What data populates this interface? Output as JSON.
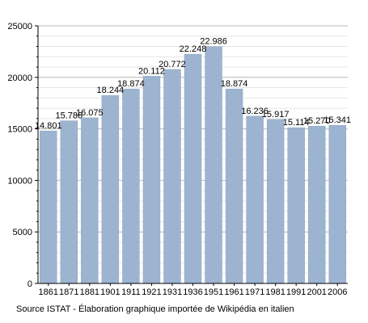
{
  "chart_data": {
    "type": "bar",
    "categories": [
      "1861",
      "1871",
      "1881",
      "1901",
      "1911",
      "1921",
      "1931",
      "1936",
      "1951",
      "1961",
      "1971",
      "1981",
      "1991",
      "2001",
      "2006"
    ],
    "values": [
      14801,
      15786,
      16075,
      18244,
      18874,
      20112,
      20772,
      22248,
      22986,
      18874,
      16236,
      15917,
      15114,
      15270,
      15341
    ],
    "data_labels": [
      "14.801",
      "15.786",
      "16.075",
      "18.244",
      "18.874",
      "20.112",
      "20.772",
      "22.248",
      "22.986",
      "18.874",
      "16.236",
      "15.917",
      "15.114",
      "15.270",
      "15.341"
    ],
    "y_ticks": [
      0,
      5000,
      10000,
      15000,
      20000,
      25000
    ],
    "ylim": [
      0,
      25000
    ],
    "grid": true,
    "bar_color": "#9db4d0",
    "bar_edge_color": "#8ba3c1"
  },
  "footer": {
    "source": "Source ISTAT - Élaboration graphique importée de Wikipédia en italien"
  }
}
